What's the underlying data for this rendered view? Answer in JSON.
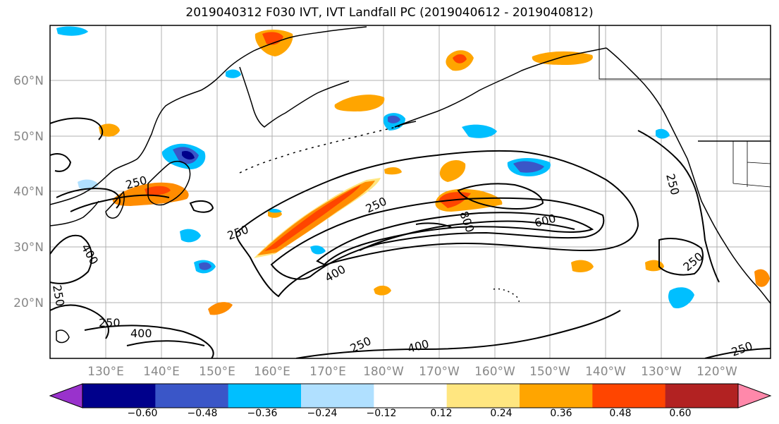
{
  "title": "2019040312 F030 IVT, IVT Landfall PC (2019040612 - 2019040812)",
  "map": {
    "lat_labels": [
      "60°N",
      "50°N",
      "40°N",
      "30°N",
      "20°N"
    ],
    "lon_labels": [
      "130°E",
      "140°E",
      "150°E",
      "160°E",
      "170°E",
      "180°W",
      "170°W",
      "160°W",
      "150°W",
      "140°W",
      "130°W",
      "120°W"
    ],
    "contour_labels": [
      "250",
      "250",
      "250",
      "250",
      "250",
      "250",
      "250",
      "250",
      "400",
      "400",
      "400",
      "400",
      "600",
      "800",
      "250"
    ],
    "land_color": "#000000",
    "grid_color": "#b0b0b0"
  },
  "colorbar": {
    "colors": [
      "#9932cc",
      "#00008b",
      "#3a56c8",
      "#00bfff",
      "#b0e0ff",
      "#ffffff",
      "#ffe680",
      "#ffa500",
      "#ff4500",
      "#b22222",
      "#ff88aa"
    ],
    "tick_labels": [
      "-0.60",
      "-0.48",
      "-0.36",
      "-0.24",
      "-0.12",
      "0.12",
      "0.24",
      "0.36",
      "0.48",
      "0.60"
    ]
  }
}
